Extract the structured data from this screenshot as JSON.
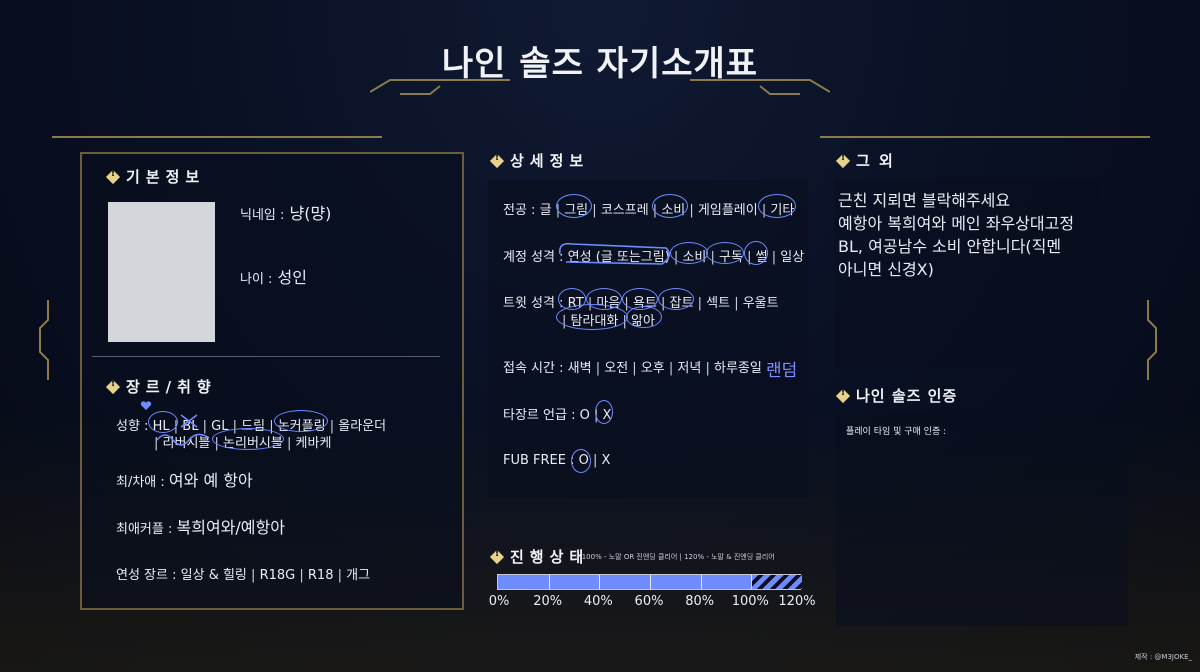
{
  "title": "나인 솔즈 자기소개표",
  "basic": {
    "header": "기본정보",
    "nickname_label": "닉네임 :",
    "nickname_value": "냥(먕)",
    "age_label": "나이 :",
    "age_value": "성인"
  },
  "genre": {
    "header": "장르/취향",
    "orientation_label": "성향 :",
    "orientation_items": [
      "HL",
      "BL",
      "GL",
      "드림",
      "논커플링",
      "올라운더"
    ],
    "orientation_items_2": [
      "리버시블",
      "논리버시블",
      "케바케"
    ],
    "fav_label": "최/차애 :",
    "fav_value": "여와 예 항아",
    "fav_couple_label": "최애커플 :",
    "fav_couple_value": "복희여와/예항아",
    "plot_label": "연성 장르 :",
    "plot_items": [
      "일상 & 힐링",
      "R18G",
      "R18",
      "개그"
    ]
  },
  "details": {
    "header": "상세정보",
    "major_label": "전공 :",
    "major_items": [
      "글",
      "그림",
      "코스프레",
      "소비",
      "게임플레이",
      "기타"
    ],
    "account_label": "계정 성격 :",
    "account_items": [
      "연성 (글 또는그림)",
      "소비",
      "구독",
      "썰",
      "일상"
    ],
    "tweet_label": "트윗 성격 :",
    "tweet_items": [
      "RT",
      "마음",
      "욕트",
      "잡트",
      "섹트",
      "우울트"
    ],
    "tweet_items_2": [
      "탐라대화",
      "앎아"
    ],
    "online_label": "접속 시간 :",
    "online_items": [
      "새벽",
      "오전",
      "오후",
      "저녁",
      "하루종일"
    ],
    "online_handwritten": "랜덤",
    "other_genre_label": "타장르 언급 :",
    "other_genre_items": [
      "O",
      "X"
    ],
    "fub_label": "FUB FREE :",
    "fub_items": [
      "O",
      "X"
    ]
  },
  "progress": {
    "header": "진행상태",
    "note": "* 100% - 노말 OR 진엔딩 클리어 | 120% - 노말 & 진엔딩 클리어",
    "value_percent": 120,
    "tick_labels": [
      "0%",
      "20%",
      "40%",
      "60%",
      "80%",
      "100%",
      "120%"
    ]
  },
  "other": {
    "header": "그 외",
    "lines": [
      "근친 지뢰면 블락해주세요",
      "예항아 복희여와 메인 좌우상대고정",
      "BL, 여공남수 소비 안합니다(직멘",
      "아니면 신경X)"
    ]
  },
  "cert": {
    "header": "나인 솔즈 인증",
    "label": "플레이 타임 및 구매 인증 :"
  },
  "credit": "제작 : @M3JOKE_",
  "colors": {
    "accent_blue": "#6f8cff",
    "gold": "#8c7a4b",
    "bg": "#0a1125"
  }
}
